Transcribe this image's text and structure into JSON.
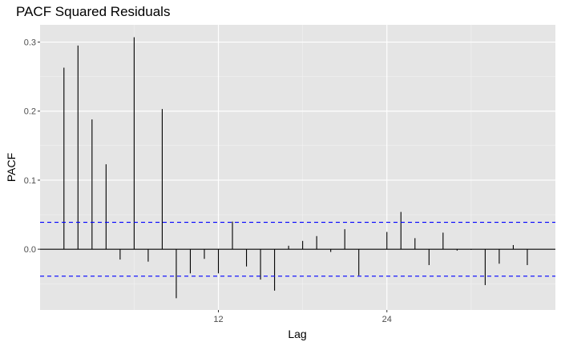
{
  "chart_data": {
    "type": "bar",
    "title": "PACF Squared Residuals",
    "xlabel": "Lag",
    "ylabel": "PACF",
    "x": [
      1,
      2,
      3,
      4,
      5,
      6,
      7,
      8,
      9,
      10,
      11,
      12,
      13,
      14,
      15,
      16,
      17,
      18,
      19,
      20,
      21,
      22,
      23,
      24,
      25,
      26,
      27,
      28,
      29,
      30,
      31,
      32,
      33,
      34,
      35
    ],
    "values": [
      0.263,
      0.295,
      0.188,
      0.123,
      -0.015,
      0.307,
      -0.018,
      0.203,
      -0.071,
      -0.035,
      -0.014,
      -0.035,
      0.04,
      -0.025,
      -0.044,
      -0.06,
      0.005,
      0.012,
      0.019,
      -0.004,
      0.029,
      -0.038,
      0.0,
      0.025,
      0.054,
      0.016,
      -0.023,
      0.024,
      -0.002,
      -0.001,
      -0.052,
      -0.021,
      0.006,
      -0.023,
      0.0
    ],
    "confidence_band": 0.039,
    "xlim": [
      -0.7,
      36.0
    ],
    "ylim": [
      -0.088,
      0.325
    ],
    "x_ticks": [
      12,
      24
    ],
    "y_ticks": [
      0.0,
      0.1,
      0.2,
      0.3
    ],
    "x_tick_labels": [
      "12",
      "24"
    ],
    "y_tick_labels": [
      "0.0",
      "0.1",
      "0.2",
      "0.3"
    ],
    "grid": true,
    "colors": {
      "panel": "#e5e5e5",
      "grid_major": "#ffffff",
      "grid_minor": "#f2f2f2",
      "bars": "#000000",
      "confidence": "#0000ff"
    }
  }
}
